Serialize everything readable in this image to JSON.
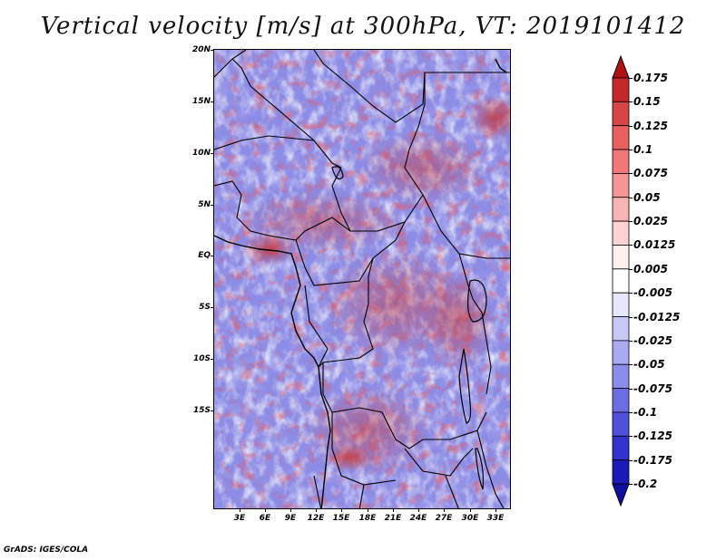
{
  "title": "Vertical velocity [m/s] at 300hPa, VT: 2019101412",
  "map": {
    "region": "Central Africa",
    "variable": "Vertical velocity",
    "units": "m/s",
    "level": "300hPa",
    "valid_time": "2019101412",
    "lat_labels": [
      "20N",
      "15N",
      "10N",
      "5N",
      "EQ",
      "5S",
      "10S",
      "15S"
    ],
    "lon_labels": [
      "3E",
      "6E",
      "9E",
      "12E",
      "15E",
      "18E",
      "21E",
      "24E",
      "27E",
      "30E",
      "33E"
    ]
  },
  "colorbar": {
    "labels": [
      "0.175",
      "0.15",
      "0.125",
      "0.1",
      "0.075",
      "0.05",
      "0.025",
      "0.0125",
      "0.005",
      "-0.005",
      "-0.0125",
      "-0.025",
      "-0.05",
      "-0.075",
      "-0.1",
      "-0.125",
      "-0.175",
      "-0.2"
    ],
    "colors": [
      "#b01010",
      "#c42828",
      "#d84545",
      "#e86060",
      "#f07878",
      "#f49696",
      "#f8b4b4",
      "#fcd2d2",
      "#fff0f0",
      "#ffffff",
      "#e6e6fc",
      "#c8c8f8",
      "#aaaaf2",
      "#8c8cec",
      "#6e6ee4",
      "#5050da",
      "#3232cc",
      "#1a1ab8",
      "#0e0e9e"
    ]
  },
  "footer": "GrADS: IGES/COLA"
}
